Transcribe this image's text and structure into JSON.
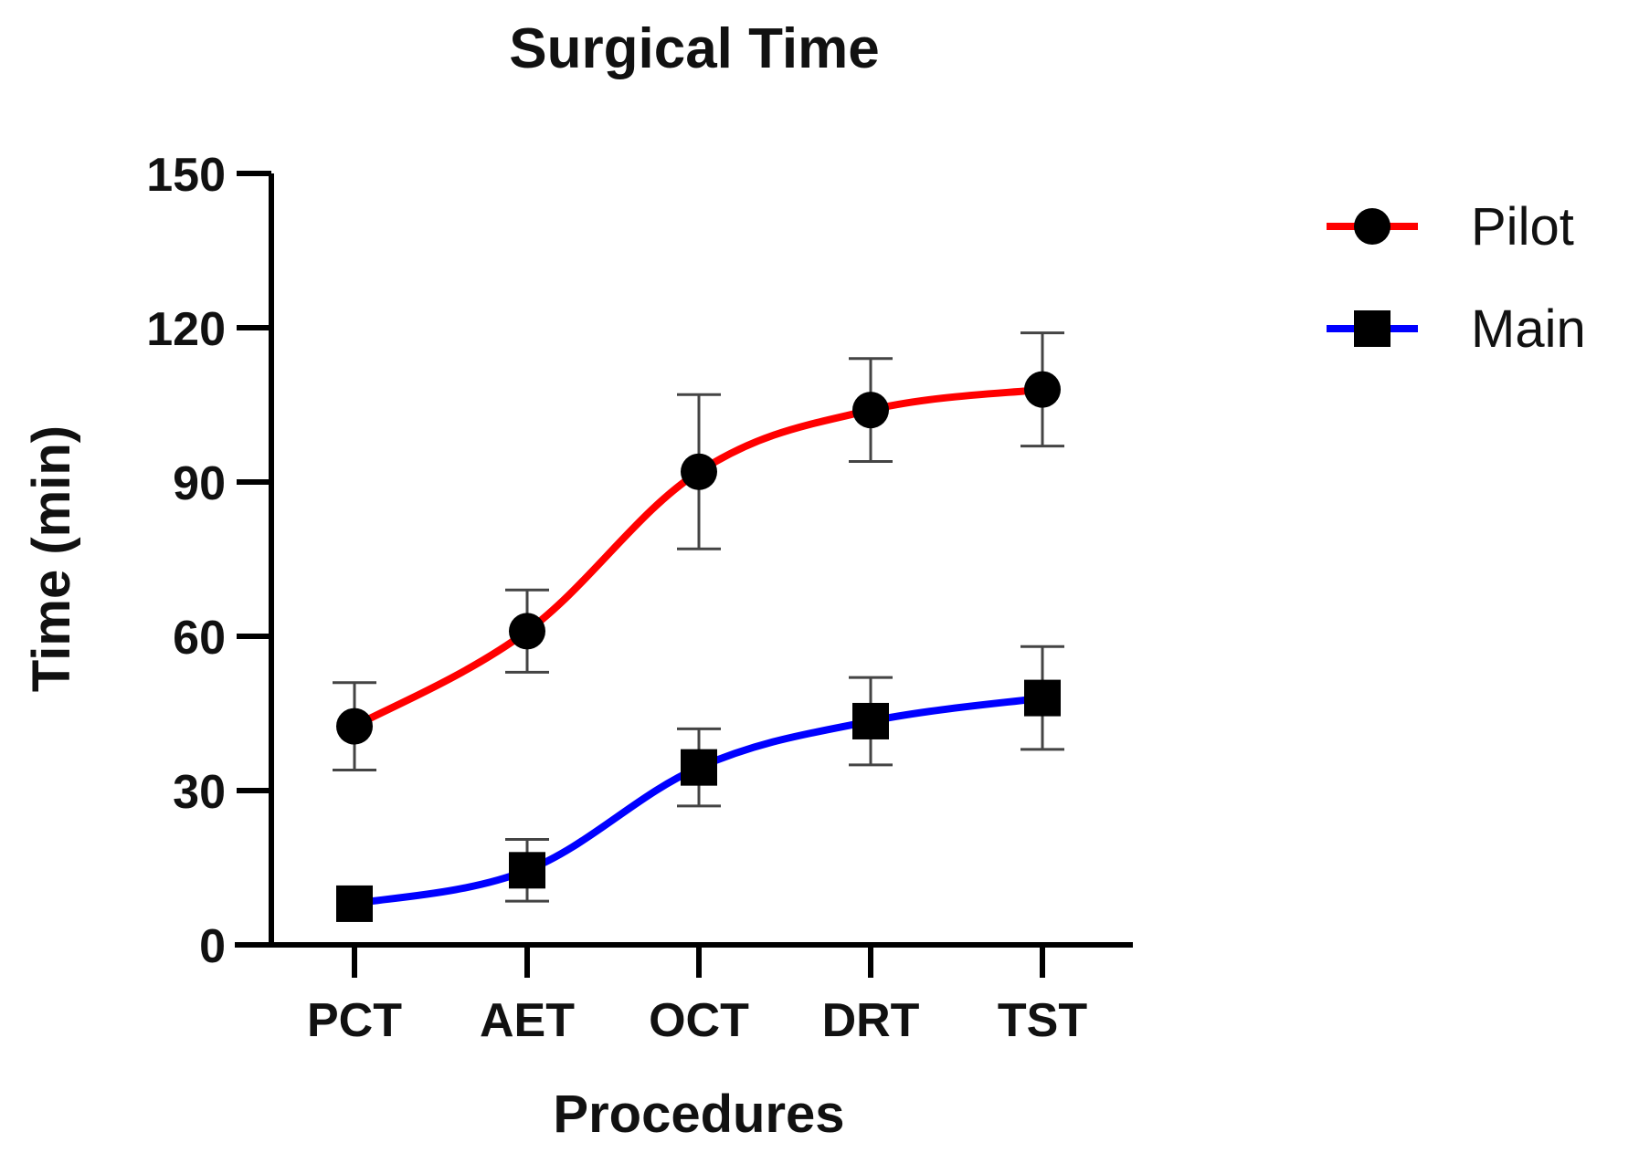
{
  "chart_data": {
    "type": "line",
    "title": "Surgical Time",
    "xlabel": "Procedures",
    "ylabel": "Time (min)",
    "categories": [
      "PCT",
      "AET",
      "OCT",
      "DRT",
      "TST"
    ],
    "ylim": [
      0,
      150
    ],
    "yticks": [
      0,
      30,
      60,
      90,
      120,
      150
    ],
    "grid": false,
    "legend_position": "top-right",
    "series": [
      {
        "name": "Pilot",
        "color": "#ff0000",
        "marker": "circle",
        "values": [
          42.5,
          61,
          92,
          104,
          108
        ],
        "error": [
          8.5,
          8,
          15,
          10,
          11
        ]
      },
      {
        "name": "Main",
        "color": "#0000ff",
        "marker": "square",
        "values": [
          8,
          14.5,
          34.5,
          43.5,
          48
        ],
        "error": [
          0,
          6,
          7.5,
          8.5,
          10
        ]
      }
    ]
  }
}
